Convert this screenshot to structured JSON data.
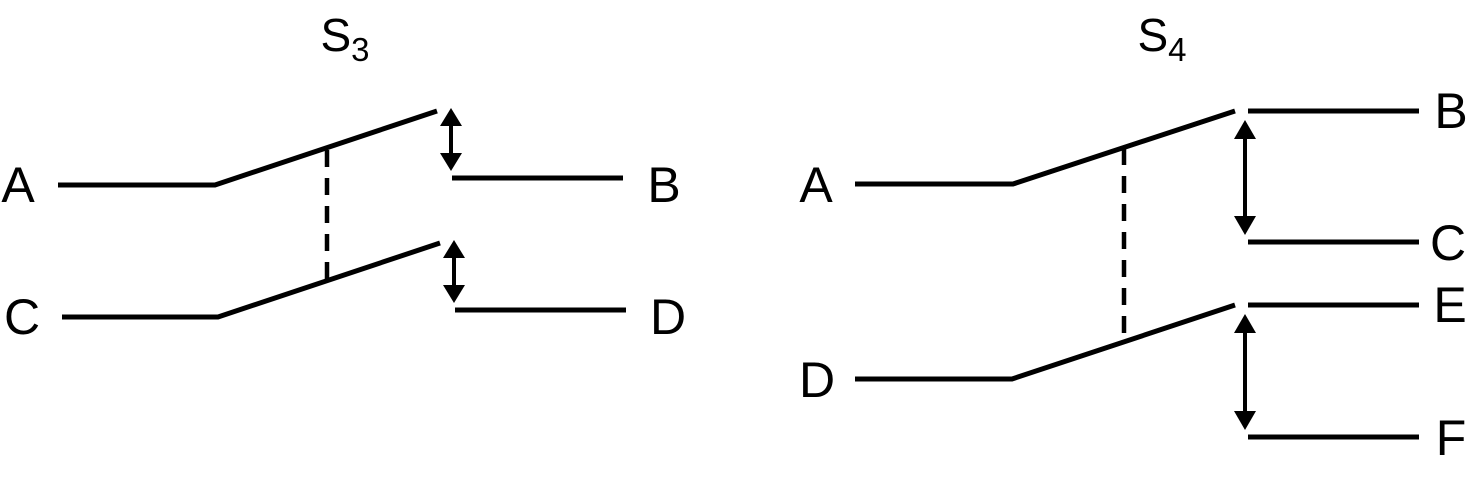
{
  "switches": [
    {
      "title": "S",
      "subscript": "3",
      "common_terminals": [
        "A",
        "C"
      ],
      "throw_terminals": [
        "B",
        "D"
      ]
    },
    {
      "title": "S",
      "subscript": "4",
      "common_terminals": [
        "A",
        "D"
      ],
      "throw_terminals": [
        "B",
        "C",
        "E",
        "F"
      ]
    }
  ]
}
